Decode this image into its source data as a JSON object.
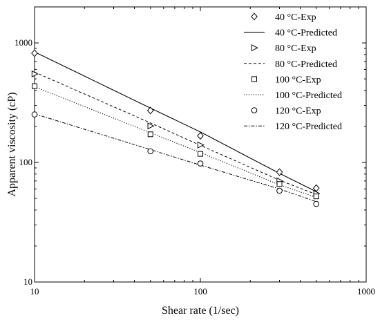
{
  "chart_data": {
    "type": "scatter",
    "title": "",
    "xlabel": "Shear rate (1/sec)",
    "ylabel": "Apparent viscosity (cP)",
    "x_scale": "log",
    "y_scale": "log",
    "xlim": [
      10,
      1000
    ],
    "ylim": [
      10,
      2000
    ],
    "x_ticks": [
      10,
      100,
      1000
    ],
    "x_tick_labels": [
      "10",
      "100",
      "1000"
    ],
    "y_ticks": [
      10,
      100,
      1000
    ],
    "y_tick_labels": [
      "10",
      "100",
      "1000"
    ],
    "grid": false,
    "legend_position": "top-right",
    "x": [
      10,
      50,
      100,
      300,
      500
    ],
    "series": [
      {
        "name": "40 °C-Exp",
        "kind": "marker",
        "marker": "diamond",
        "values": [
          820,
          272,
          167,
          83,
          61
        ]
      },
      {
        "name": "40 °C-Predicted",
        "kind": "line",
        "dash": "solid",
        "values": [
          840,
          285,
          180,
          81,
          57
        ]
      },
      {
        "name": "80  °C-Exp",
        "kind": "marker",
        "marker": "triangle-right",
        "values": [
          550,
          202,
          140,
          70,
          55
        ]
      },
      {
        "name": "80 °C-Predicted",
        "kind": "line",
        "dash": "dashed",
        "values": [
          570,
          214,
          139,
          71,
          54
        ]
      },
      {
        "name": "100 °C-Exp",
        "kind": "marker",
        "marker": "square",
        "values": [
          435,
          172,
          118,
          66,
          52
        ]
      },
      {
        "name": "100 °C-Predicted",
        "kind": "line",
        "dash": "dotted",
        "values": [
          430,
          177,
          121,
          65,
          51
        ]
      },
      {
        "name": "120  °C-Exp",
        "kind": "marker",
        "marker": "circle",
        "values": [
          252,
          124,
          98,
          58,
          45
        ]
      },
      {
        "name": "120 °C-Predicted",
        "kind": "line",
        "dash": "dashdot",
        "values": [
          255,
          128,
          95,
          60,
          47
        ]
      }
    ]
  }
}
